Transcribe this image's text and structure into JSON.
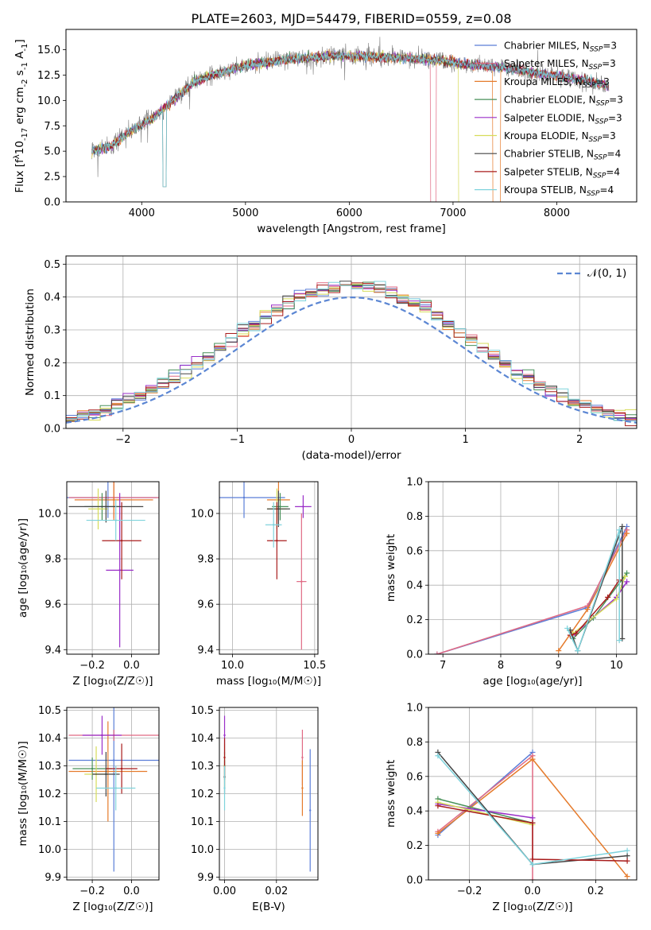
{
  "page_title": "PLATE=2603, MJD=54479, FIBERID=0559, z=0.08",
  "colors": {
    "Chabrier MILES": "#5b7ed8",
    "Salpeter MILES": "#e06a84",
    "Kroupa MILES": "#e57b2c",
    "Chabrier ELODIE": "#48915a",
    "Salpeter ELODIE": "#9a2fc8",
    "Kroupa ELODIE": "#d6dc5a",
    "Chabrier STELIB": "#444444",
    "Salpeter STELIB": "#a81c1c",
    "Kroupa STELIB": "#7fd3dc",
    "data": "#7f7f7f",
    "normal": "#5b86d3"
  },
  "chart_data": [
    {
      "type": "line",
      "title": "PLATE=2603, MJD=54479, FIBERID=0559, z=0.08",
      "xlabel": "wavelength [Angstrom, rest frame]",
      "ylabel": "Flux [f",
      "ylabel_sub": "λ",
      "ylabel_rest": "10",
      "ylabel_sup1": "-17",
      "ylabel_units": " erg cm",
      "ylabel_sup2": "-2",
      "ylabel_s": " s",
      "ylabel_sup3": "-1",
      "ylabel_A": " A",
      "ylabel_sup4": "-1",
      "ylabel_end": "]",
      "xlim": [
        3270,
        8770
      ],
      "ylim": [
        0,
        17
      ],
      "xticks": [
        "4000",
        "5000",
        "6000",
        "7000",
        "8000"
      ],
      "yticks": [
        "0.0",
        "2.5",
        "5.0",
        "7.5",
        "10.0",
        "12.5",
        "15.0"
      ],
      "continuum": [
        [
          3520,
          5.0
        ],
        [
          3700,
          5.5
        ],
        [
          3900,
          7.0
        ],
        [
          4100,
          8.2
        ],
        [
          4300,
          10.0
        ],
        [
          4500,
          11.8
        ],
        [
          4700,
          12.6
        ],
        [
          5000,
          13.4
        ],
        [
          5300,
          13.9
        ],
        [
          5600,
          14.2
        ],
        [
          5900,
          14.4
        ],
        [
          6200,
          14.3
        ],
        [
          6500,
          14.2
        ],
        [
          6800,
          14.0
        ],
        [
          7100,
          13.6
        ],
        [
          7400,
          13.3
        ],
        [
          7700,
          12.9
        ],
        [
          8000,
          12.4
        ],
        [
          8300,
          11.9
        ],
        [
          8500,
          11.4
        ]
      ],
      "legend": [
        {
          "name": "Chabrier MILES",
          "sub": "SSP",
          "n": "3"
        },
        {
          "name": "Salpeter MILES",
          "sub": "SSP",
          "n": "3"
        },
        {
          "name": "Kroupa MILES",
          "sub": "SSP",
          "n": "3"
        },
        {
          "name": "Chabrier ELODIE",
          "sub": "SSP",
          "n": "3"
        },
        {
          "name": "Salpeter ELODIE",
          "sub": "SSP",
          "n": "3"
        },
        {
          "name": "Kroupa ELODIE",
          "sub": "SSP",
          "n": "3"
        },
        {
          "name": "Chabrier STELIB",
          "sub": "SSP",
          "n": "4"
        },
        {
          "name": "Salpeter STELIB",
          "sub": "SSP",
          "n": "4"
        },
        {
          "name": "Kroupa STELIB",
          "sub": "SSP",
          "n": "4"
        }
      ],
      "legend_prefix": "N",
      "legend_placement": "right"
    },
    {
      "type": "histogram",
      "xlabel": "(data-model)/error",
      "ylabel": "Normed distribution",
      "xlim": [
        -2.5,
        2.5
      ],
      "ylim": [
        0,
        0.525
      ],
      "xticks": [
        "−2",
        "−1",
        "0",
        "1",
        "2"
      ],
      "yticks": [
        "0.0",
        "0.1",
        "0.2",
        "0.3",
        "0.4",
        "0.5"
      ],
      "bin_width": 0.1,
      "legend_label": "𝒩(0, 1)",
      "legend_placement": "top-right",
      "grid": true
    },
    {
      "type": "errorbar",
      "xlabel": "Z [log₁₀(Z/Z☉)]",
      "ylabel": "age  [log₁₀(age/yr)]",
      "xlim": [
        -0.33,
        0.14
      ],
      "ylim": [
        9.38,
        10.14
      ],
      "xticks": [
        "−0.2",
        "0.0"
      ],
      "yticks": [
        "9.4",
        "9.6",
        "9.8",
        "10.0"
      ],
      "points": [
        {
          "model": "Chabrier MILES",
          "x": -0.12,
          "xerr": 0.25,
          "y": 10.07,
          "yerr": 0.09
        },
        {
          "model": "Salpeter MILES",
          "x": -0.09,
          "xerr": 0.23,
          "y": 10.07,
          "yerr": 0.09
        },
        {
          "model": "Kroupa MILES",
          "x": -0.09,
          "xerr": 0.2,
          "y": 10.06,
          "yerr": 0.09
        },
        {
          "model": "Chabrier ELODIE",
          "x": -0.15,
          "xerr": 0.09,
          "y": 10.03,
          "yerr": 0.06
        },
        {
          "model": "Salpeter ELODIE",
          "x": -0.06,
          "xerr": 0.07,
          "y": 9.75,
          "yerr": 0.34
        },
        {
          "model": "Kroupa ELODIE",
          "x": -0.17,
          "xerr": 0.05,
          "y": 10.02,
          "yerr": 0.09
        },
        {
          "model": "Chabrier STELIB",
          "x": -0.13,
          "xerr": 0.19,
          "y": 10.03,
          "yerr": 0.07
        },
        {
          "model": "Salpeter STELIB",
          "x": -0.05,
          "xerr": 0.1,
          "y": 9.88,
          "yerr": 0.17
        },
        {
          "model": "Kroupa STELIB",
          "x": -0.08,
          "xerr": 0.15,
          "y": 9.97,
          "yerr": 0.09
        }
      ]
    },
    {
      "type": "errorbar",
      "xlabel": "mass [log₁₀(M/M☉)]",
      "xlim": [
        9.92,
        10.52
      ],
      "ylim": [
        9.38,
        10.14
      ],
      "xticks": [
        "10.0",
        "10.5"
      ],
      "yticks": [
        "9.4",
        "9.6",
        "9.8",
        "10.0"
      ],
      "points": [
        {
          "model": "Chabrier MILES",
          "x": 10.07,
          "xerr": 0.25,
          "y": 10.07,
          "yerr": 0.09
        },
        {
          "model": "Salpeter MILES",
          "x": 10.42,
          "xerr": 0.03,
          "y": 9.7,
          "yerr": 0.3
        },
        {
          "model": "Kroupa MILES",
          "x": 10.28,
          "xerr": 0.07,
          "y": 10.06,
          "yerr": 0.09
        },
        {
          "model": "Chabrier ELODIE",
          "x": 10.29,
          "xerr": 0.05,
          "y": 10.03,
          "yerr": 0.06
        },
        {
          "model": "Salpeter ELODIE",
          "x": 10.43,
          "xerr": 0.05,
          "y": 10.03,
          "yerr": 0.05
        },
        {
          "model": "Kroupa ELODIE",
          "x": 10.27,
          "xerr": 0.06,
          "y": 10.02,
          "yerr": 0.09
        },
        {
          "model": "Chabrier STELIB",
          "x": 10.28,
          "xerr": 0.07,
          "y": 10.02,
          "yerr": 0.08
        },
        {
          "model": "Salpeter STELIB",
          "x": 10.27,
          "xerr": 0.06,
          "y": 9.88,
          "yerr": 0.17
        },
        {
          "model": "Kroupa STELIB",
          "x": 10.25,
          "xerr": 0.05,
          "y": 9.95,
          "yerr": 0.1
        }
      ]
    },
    {
      "type": "line",
      "xlabel": "age  [log₁₀(age/yr)]",
      "ylabel": "mass weight",
      "xlim": [
        6.75,
        10.35
      ],
      "ylim": [
        0,
        1
      ],
      "xticks": [
        "7",
        "8",
        "9",
        "10"
      ],
      "yticks": [
        "0.0",
        "0.2",
        "0.4",
        "0.6",
        "0.8",
        "1.0"
      ],
      "series": [
        {
          "model": "Chabrier MILES",
          "x": [
            6.9,
            9.5,
            10.18
          ],
          "y": [
            0.0,
            0.27,
            0.74
          ]
        },
        {
          "model": "Salpeter MILES",
          "x": [
            6.9,
            9.5,
            10.18
          ],
          "y": [
            0.0,
            0.28,
            0.72
          ]
        },
        {
          "model": "Kroupa MILES",
          "x": [
            9.0,
            9.5,
            10.18
          ],
          "y": [
            0.02,
            0.26,
            0.7
          ]
        },
        {
          "model": "Chabrier ELODIE",
          "x": [
            9.25,
            9.6,
            10.18
          ],
          "y": [
            0.09,
            0.21,
            0.47
          ]
        },
        {
          "model": "Salpeter ELODIE",
          "x": [
            9.25,
            10.0,
            10.18
          ],
          "y": [
            0.11,
            0.33,
            0.42
          ]
        },
        {
          "model": "Kroupa ELODIE",
          "x": [
            9.25,
            10.0,
            10.15
          ],
          "y": [
            0.12,
            0.32,
            0.45
          ]
        },
        {
          "model": "Chabrier STELIB",
          "x": [
            9.2,
            9.33,
            10.1,
            10.1
          ],
          "y": [
            0.14,
            0.02,
            0.74,
            0.09
          ]
        },
        {
          "model": "Salpeter STELIB",
          "x": [
            9.2,
            9.3,
            9.85,
            10.05
          ],
          "y": [
            0.11,
            0.12,
            0.33,
            0.43
          ]
        },
        {
          "model": "Kroupa STELIB",
          "x": [
            9.15,
            9.33,
            10.05,
            10.05
          ],
          "y": [
            0.15,
            0.02,
            0.72,
            0.08
          ]
        }
      ]
    },
    {
      "type": "errorbar",
      "xlabel": "Z [log₁₀(Z/Z☉)]",
      "ylabel": "mass [log₁₀(M/M☉)]",
      "xlim": [
        -0.33,
        0.14
      ],
      "ylim": [
        9.89,
        10.51
      ],
      "xticks": [
        "−0.2",
        "0.0"
      ],
      "yticks": [
        "9.9",
        "10.0",
        "10.1",
        "10.2",
        "10.3",
        "10.4",
        "10.5"
      ],
      "points": [
        {
          "model": "Chabrier MILES",
          "x": -0.09,
          "xerr": 0.23,
          "y": 10.32,
          "yerr": 0.4
        },
        {
          "model": "Salpeter MILES",
          "x": -0.09,
          "xerr": 0.23,
          "y": 10.41,
          "yerr": 0.02
        },
        {
          "model": "Kroupa MILES",
          "x": -0.12,
          "xerr": 0.2,
          "y": 10.28,
          "yerr": 0.18
        },
        {
          "model": "Chabrier ELODIE",
          "x": -0.2,
          "xerr": 0.1,
          "y": 10.29,
          "yerr": 0.04
        },
        {
          "model": "Salpeter ELODIE",
          "x": -0.15,
          "xerr": 0.1,
          "y": 10.41,
          "yerr": 0.07
        },
        {
          "model": "Kroupa ELODIE",
          "x": -0.18,
          "xerr": 0.06,
          "y": 10.27,
          "yerr": 0.1
        },
        {
          "model": "Chabrier STELIB",
          "x": -0.13,
          "xerr": 0.07,
          "y": 10.27,
          "yerr": 0.08
        },
        {
          "model": "Salpeter STELIB",
          "x": -0.05,
          "xerr": 0.08,
          "y": 10.29,
          "yerr": 0.09
        },
        {
          "model": "Kroupa STELIB",
          "x": -0.08,
          "xerr": 0.1,
          "y": 10.22,
          "yerr": 0.08
        }
      ]
    },
    {
      "type": "errorbar",
      "xlabel": "E(B-V)",
      "xlim": [
        -0.002,
        0.036
      ],
      "ylim": [
        9.89,
        10.51
      ],
      "xticks": [
        "0.00",
        "0.02"
      ],
      "yticks": [
        "9.9",
        "10.0",
        "10.1",
        "10.2",
        "10.3",
        "10.4",
        "10.5"
      ],
      "points": [
        {
          "model": "Chabrier MILES",
          "x": 0.033,
          "y": 10.14,
          "yerr": 0.22
        },
        {
          "model": "Salpeter MILES",
          "x": 0.03,
          "y": 10.33,
          "yerr": 0.1
        },
        {
          "model": "Kroupa MILES",
          "x": 0.03,
          "y": 10.22,
          "yerr": 0.1
        },
        {
          "model": "Chabrier ELODIE",
          "x": 0.0,
          "y": 10.3,
          "yerr": 0.05
        },
        {
          "model": "Salpeter ELODIE",
          "x": 0.0,
          "y": 10.41,
          "yerr": 0.07
        },
        {
          "model": "Kroupa ELODIE",
          "x": 0.0,
          "y": 10.3,
          "yerr": 0.08
        },
        {
          "model": "Chabrier STELIB",
          "x": 0.0,
          "y": 10.26,
          "yerr": 0.06
        },
        {
          "model": "Salpeter STELIB",
          "x": 0.0,
          "y": 10.33,
          "yerr": 0.07
        },
        {
          "model": "Kroupa STELIB",
          "x": 0.0,
          "y": 10.22,
          "yerr": 0.08
        }
      ]
    },
    {
      "type": "line",
      "xlabel": "Z [log₁₀(Z/Z☉)]",
      "ylabel": "mass weight",
      "xlim": [
        -0.33,
        0.33
      ],
      "ylim": [
        0,
        1
      ],
      "xticks": [
        "−0.2",
        "0.0",
        "0.2"
      ],
      "yticks": [
        "0.0",
        "0.2",
        "0.4",
        "0.6",
        "0.8",
        "1.0"
      ],
      "series": [
        {
          "model": "Chabrier MILES",
          "x": [
            -0.3,
            0.0
          ],
          "y": [
            0.26,
            0.74
          ]
        },
        {
          "model": "Salpeter MILES",
          "x": [
            -0.3,
            0.0,
            0.0
          ],
          "y": [
            0.28,
            0.72,
            0.0
          ]
        },
        {
          "model": "Kroupa MILES",
          "x": [
            -0.3,
            0.0,
            0.3
          ],
          "y": [
            0.27,
            0.7,
            0.02
          ]
        },
        {
          "model": "Chabrier ELODIE",
          "x": [
            -0.3,
            0.0
          ],
          "y": [
            0.47,
            0.33
          ]
        },
        {
          "model": "Salpeter ELODIE",
          "x": [
            -0.3,
            0.0
          ],
          "y": [
            0.44,
            0.36
          ]
        },
        {
          "model": "Kroupa ELODIE",
          "x": [
            -0.3,
            0.0
          ],
          "y": [
            0.45,
            0.32
          ]
        },
        {
          "model": "Chabrier STELIB",
          "x": [
            -0.3,
            0.0,
            0.3
          ],
          "y": [
            0.74,
            0.09,
            0.14
          ]
        },
        {
          "model": "Salpeter STELIB",
          "x": [
            -0.3,
            0.0,
            0.0,
            0.3
          ],
          "y": [
            0.43,
            0.33,
            0.12,
            0.11
          ]
        },
        {
          "model": "Kroupa STELIB",
          "x": [
            -0.3,
            0.0,
            0.3
          ],
          "y": [
            0.72,
            0.09,
            0.17
          ]
        }
      ]
    }
  ]
}
